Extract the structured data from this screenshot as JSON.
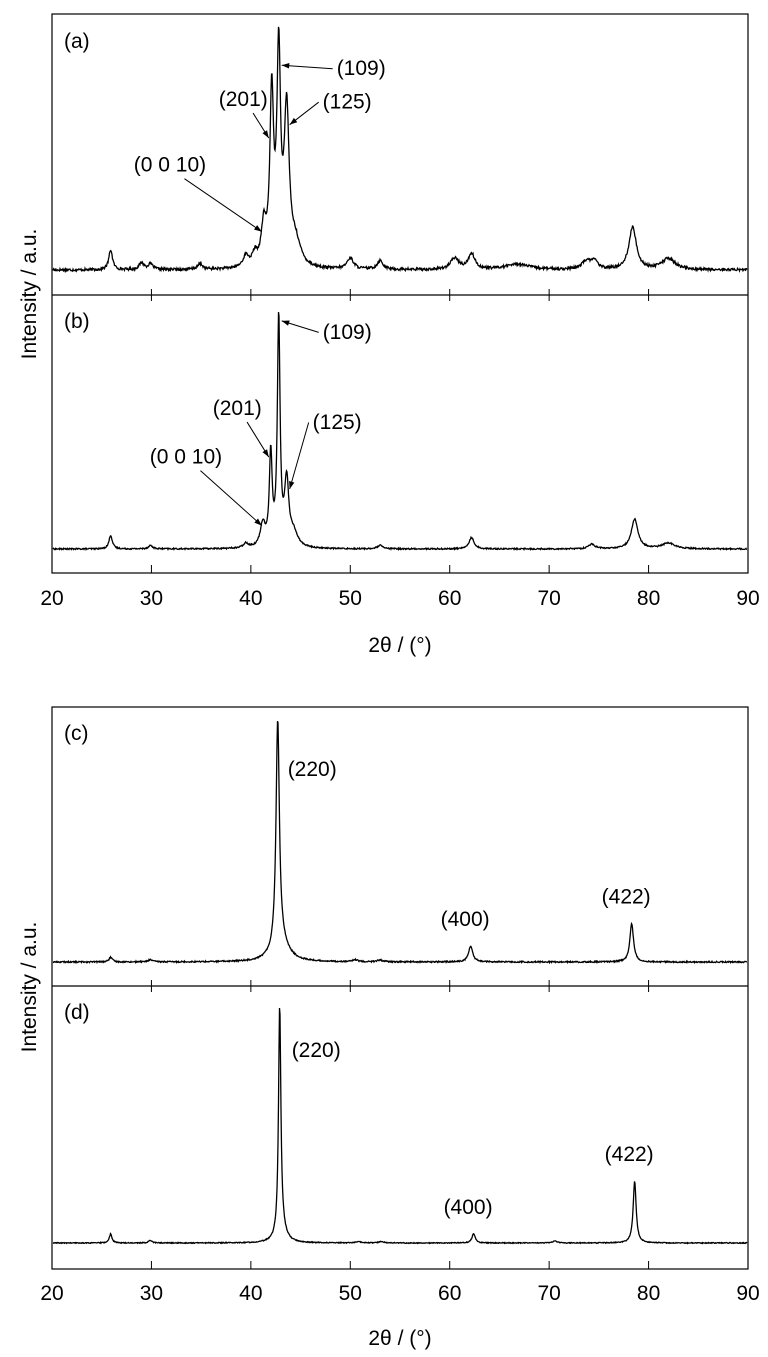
{
  "figures": [
    {
      "id": "top",
      "xlabel": "2θ / (°)",
      "ylabel": "Intensity / a.u.",
      "xticks": [
        "20",
        "30",
        "40",
        "50",
        "60",
        "70",
        "80",
        "90"
      ]
    },
    {
      "id": "bottom",
      "xlabel": "2θ / (°)",
      "ylabel": "Intensity / a.u.",
      "xticks": [
        "20",
        "30",
        "40",
        "50",
        "60",
        "70",
        "80",
        "90"
      ]
    }
  ],
  "chart_data": [
    {
      "type": "line",
      "panel_label": "(a)",
      "xlim": [
        20,
        90
      ],
      "ylim": [
        0,
        1.05
      ],
      "noise": 0.006,
      "grid": false,
      "series": [
        {
          "peaks": [
            [
              25.9,
              0.09,
              0.22
            ],
            [
              29.0,
              0.03,
              0.3
            ],
            [
              29.9,
              0.025,
              0.3
            ],
            [
              34.9,
              0.025,
              0.3
            ],
            [
              39.5,
              0.05,
              0.35
            ],
            [
              40.4,
              0.05,
              0.3
            ],
            [
              41.3,
              0.17,
              0.3
            ],
            [
              42.1,
              0.75,
              0.22
            ],
            [
              42.8,
              0.93,
              0.22
            ],
            [
              43.6,
              0.68,
              0.3
            ],
            [
              44.5,
              0.1,
              0.6
            ],
            [
              50.0,
              0.05,
              0.4
            ],
            [
              53.0,
              0.04,
              0.35
            ],
            [
              60.5,
              0.05,
              0.5
            ],
            [
              62.2,
              0.07,
              0.4
            ],
            [
              66.8,
              0.025,
              1.5
            ],
            [
              73.7,
              0.035,
              0.5
            ],
            [
              74.5,
              0.04,
              0.4
            ],
            [
              78.4,
              0.19,
              0.45
            ],
            [
              82.0,
              0.05,
              0.8
            ]
          ]
        }
      ],
      "annotations": [
        {
          "text": "(109)",
          "x": 42.8,
          "y": 0.91
        },
        {
          "text": "(201)",
          "x": 42.0,
          "y": 0.61
        },
        {
          "text": "(125)",
          "x": 43.6,
          "y": 0.67
        },
        {
          "text": "(0 0 10)",
          "x": 41.3,
          "y": 0.19
        }
      ]
    },
    {
      "type": "line",
      "panel_label": "(b)",
      "xlim": [
        20,
        90
      ],
      "ylim": [
        0,
        1.02
      ],
      "noise": 0.003,
      "grid": false,
      "series": [
        {
          "peaks": [
            [
              25.9,
              0.06,
              0.2
            ],
            [
              29.9,
              0.015,
              0.25
            ],
            [
              39.5,
              0.02,
              0.3
            ],
            [
              41.2,
              0.1,
              0.3
            ],
            [
              42.0,
              0.4,
              0.17
            ],
            [
              42.8,
              1.0,
              0.16
            ],
            [
              43.6,
              0.28,
              0.25
            ],
            [
              44.3,
              0.06,
              0.5
            ],
            [
              53.0,
              0.015,
              0.3
            ],
            [
              62.2,
              0.05,
              0.3
            ],
            [
              74.3,
              0.02,
              0.4
            ],
            [
              78.6,
              0.13,
              0.4
            ],
            [
              82.0,
              0.025,
              0.8
            ]
          ]
        }
      ],
      "annotations": [
        {
          "text": "(109)",
          "x": 42.8,
          "y": 0.99
        },
        {
          "text": "(201)",
          "x": 42.0,
          "y": 0.42
        },
        {
          "text": "(125)",
          "x": 43.6,
          "y": 0.28
        },
        {
          "text": "(0 0 10)",
          "x": 41.3,
          "y": 0.12
        }
      ]
    },
    {
      "type": "line",
      "panel_label": "(c)",
      "xlim": [
        20,
        90
      ],
      "ylim": [
        0,
        1.02
      ],
      "noise": 0.003,
      "grid": false,
      "series": [
        {
          "peaks": [
            [
              25.9,
              0.02,
              0.2
            ],
            [
              29.9,
              0.01,
              0.25
            ],
            [
              42.7,
              1.0,
              0.2
            ],
            [
              43.0,
              0.08,
              0.9
            ],
            [
              62.1,
              0.07,
              0.25
            ],
            [
              78.3,
              0.17,
              0.22
            ],
            [
              50.5,
              0.008,
              0.3
            ],
            [
              53.0,
              0.008,
              0.3
            ]
          ]
        }
      ],
      "annotations": [
        {
          "text": "(220)",
          "x": 42.7,
          "y": 0.95
        },
        {
          "text": "(400)",
          "x": 62.1,
          "y": 0.07
        },
        {
          "text": "(422)",
          "x": 78.3,
          "y": 0.17
        }
      ]
    },
    {
      "type": "line",
      "panel_label": "(d)",
      "xlim": [
        20,
        90
      ],
      "ylim": [
        0,
        1.02
      ],
      "noise": 0.002,
      "grid": false,
      "series": [
        {
          "peaks": [
            [
              25.9,
              0.04,
              0.16
            ],
            [
              29.9,
              0.012,
              0.2
            ],
            [
              42.9,
              1.0,
              0.14
            ],
            [
              43.1,
              0.05,
              0.5
            ],
            [
              62.4,
              0.04,
              0.2
            ],
            [
              78.6,
              0.27,
              0.18
            ],
            [
              50.8,
              0.006,
              0.3
            ],
            [
              53.1,
              0.006,
              0.3
            ],
            [
              70.6,
              0.008,
              0.3
            ]
          ]
        }
      ],
      "annotations": [
        {
          "text": "(220)",
          "x": 42.9,
          "y": 0.95
        },
        {
          "text": "(400)",
          "x": 62.4,
          "y": 0.04
        },
        {
          "text": "(422)",
          "x": 78.6,
          "y": 0.27
        }
      ]
    }
  ]
}
